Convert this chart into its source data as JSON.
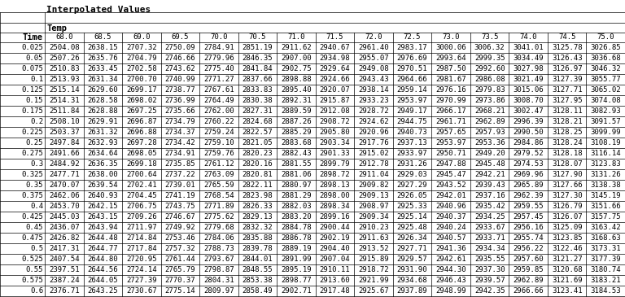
{
  "title": "Interpolated Values",
  "row_label": "Time",
  "col_header1": "Temp",
  "temp_values": [
    68.0,
    68.5,
    69.0,
    69.5,
    70.0,
    70.5,
    71.0,
    71.5,
    72.0,
    72.5,
    73.0,
    73.5,
    74.0,
    74.5,
    75.0
  ],
  "time_values": [
    0.025,
    0.05,
    0.075,
    0.1,
    0.125,
    0.15,
    0.175,
    0.2,
    0.225,
    0.25,
    0.275,
    0.3,
    0.325,
    0.35,
    0.375,
    0.4,
    0.425,
    0.45,
    0.475,
    0.5,
    0.525,
    0.55,
    0.575,
    0.6
  ],
  "table_data": [
    [
      2504.08,
      2638.15,
      2707.32,
      2750.09,
      2784.91,
      2851.19,
      2911.62,
      2940.67,
      2961.4,
      2983.17,
      3000.06,
      3006.32,
      3041.01,
      3125.78,
      3026.85
    ],
    [
      2507.26,
      2635.76,
      2704.79,
      2746.66,
      2779.96,
      2846.35,
      2907.0,
      2934.98,
      2955.07,
      2976.69,
      2993.64,
      2999.35,
      3034.49,
      3126.43,
      3036.68
    ],
    [
      2510.83,
      2633.45,
      2702.58,
      2743.62,
      2775.4,
      2841.84,
      2902.75,
      2929.64,
      2949.08,
      2970.51,
      2987.5,
      2992.6,
      3027.98,
      3126.97,
      3046.32
    ],
    [
      2513.93,
      2631.34,
      2700.7,
      2740.99,
      2771.27,
      2837.66,
      2898.88,
      2924.66,
      2943.43,
      2964.66,
      2981.67,
      2986.08,
      3021.49,
      3127.39,
      3055.77
    ],
    [
      2515.14,
      2629.6,
      2699.17,
      2738.77,
      2767.61,
      2833.83,
      2895.4,
      2920.07,
      2938.14,
      2959.14,
      2976.16,
      2979.83,
      3015.06,
      3127.71,
      3065.02
    ],
    [
      2514.31,
      2628.58,
      2698.02,
      2736.99,
      2764.49,
      2830.38,
      2892.31,
      2915.87,
      2933.23,
      2953.97,
      2970.99,
      2973.86,
      3008.7,
      3127.95,
      3074.08
    ],
    [
      2511.84,
      2628.88,
      2697.25,
      2735.66,
      2762.0,
      2827.31,
      2889.59,
      2912.08,
      2928.72,
      2949.17,
      2966.17,
      2968.21,
      3002.47,
      3128.11,
      3082.93
    ],
    [
      2508.1,
      2629.91,
      2696.87,
      2734.79,
      2760.22,
      2824.68,
      2887.26,
      2908.72,
      2924.62,
      2944.75,
      2961.71,
      2962.89,
      2996.39,
      3128.21,
      3091.57
    ],
    [
      2503.37,
      2631.32,
      2696.88,
      2734.37,
      2759.24,
      2822.57,
      2885.29,
      2905.8,
      2920.96,
      2940.73,
      2957.65,
      2957.93,
      2990.5,
      3128.25,
      3099.99
    ],
    [
      2497.84,
      2632.93,
      2697.28,
      2734.42,
      2759.1,
      2821.05,
      2883.68,
      2903.34,
      2917.76,
      2937.13,
      2953.97,
      2953.36,
      2984.86,
      3128.24,
      3108.19
    ],
    [
      2491.66,
      2634.64,
      2698.05,
      2734.91,
      2759.76,
      2820.23,
      2882.43,
      2901.33,
      2915.02,
      2933.97,
      2950.71,
      2949.2,
      2979.52,
      3128.18,
      3116.14
    ],
    [
      2484.92,
      2636.35,
      2699.18,
      2735.85,
      2761.12,
      2820.16,
      2881.55,
      2899.79,
      2912.78,
      2931.26,
      2947.88,
      2945.48,
      2974.53,
      3128.07,
      3123.83
    ],
    [
      2477.71,
      2638.0,
      2700.64,
      2737.22,
      2763.09,
      2820.81,
      2881.06,
      2898.72,
      2911.04,
      2929.03,
      2945.47,
      2942.21,
      2969.96,
      3127.9,
      3131.26
    ],
    [
      2470.07,
      2639.54,
      2702.41,
      2739.01,
      2765.59,
      2822.11,
      2880.97,
      2898.13,
      2909.82,
      2927.29,
      2943.52,
      2939.43,
      2965.89,
      3127.66,
      3138.38
    ],
    [
      2462.06,
      2640.93,
      2704.45,
      2741.19,
      2768.54,
      2823.98,
      2881.29,
      2898.0,
      2909.13,
      2926.05,
      2942.01,
      2937.16,
      2962.39,
      3127.3,
      3145.19
    ],
    [
      2453.7,
      2642.15,
      2706.75,
      2743.75,
      2771.89,
      2826.33,
      2882.03,
      2898.34,
      2908.97,
      2925.33,
      2940.96,
      2935.42,
      2959.55,
      3126.79,
      3151.66
    ],
    [
      2445.03,
      2643.15,
      2709.26,
      2746.67,
      2775.62,
      2829.13,
      2883.2,
      2899.16,
      2909.34,
      2925.14,
      2940.37,
      2934.25,
      2957.45,
      3126.07,
      3157.75
    ],
    [
      2436.07,
      2643.94,
      2711.97,
      2749.92,
      2779.68,
      2832.32,
      2884.78,
      2900.44,
      2910.23,
      2925.48,
      2940.24,
      2933.67,
      2956.16,
      3125.09,
      3163.42
    ],
    [
      2426.82,
      2644.48,
      2714.84,
      2753.46,
      2784.06,
      2835.88,
      2886.78,
      2902.19,
      2911.63,
      2926.34,
      2940.57,
      2933.71,
      2955.74,
      3123.85,
      3168.63
    ],
    [
      2417.31,
      2644.77,
      2717.84,
      2757.32,
      2788.73,
      2839.78,
      2889.19,
      2904.4,
      2913.52,
      2927.71,
      2941.36,
      2934.34,
      2956.22,
      3122.46,
      3173.31
    ],
    [
      2407.54,
      2644.8,
      2720.95,
      2761.44,
      2793.67,
      2844.01,
      2891.99,
      2907.04,
      2915.89,
      2929.57,
      2942.61,
      2935.55,
      2957.6,
      3121.27,
      3177.39
    ],
    [
      2397.51,
      2644.56,
      2724.14,
      2765.79,
      2798.87,
      2848.55,
      2895.19,
      2910.11,
      2918.72,
      2931.9,
      2944.3,
      2937.3,
      2959.85,
      3120.68,
      3180.74
    ],
    [
      2387.24,
      2644.05,
      2727.39,
      2770.37,
      2804.31,
      2853.38,
      2898.77,
      2913.6,
      2921.99,
      2934.68,
      2946.43,
      2939.57,
      2962.89,
      3121.69,
      3183.21
    ],
    [
      2376.71,
      2643.25,
      2730.67,
      2775.14,
      2809.97,
      2858.49,
      2902.71,
      2917.48,
      2925.67,
      2937.89,
      2948.99,
      2942.35,
      2966.66,
      3123.41,
      3184.53
    ]
  ],
  "bg_color": "#ffffff",
  "grid_color": "#000000",
  "text_color": "#000000",
  "title_fontsize": 8,
  "header_fontsize": 7.5,
  "data_fontsize": 6.5,
  "fig_width": 7.68,
  "fig_height": 3.65,
  "dpi": 100
}
